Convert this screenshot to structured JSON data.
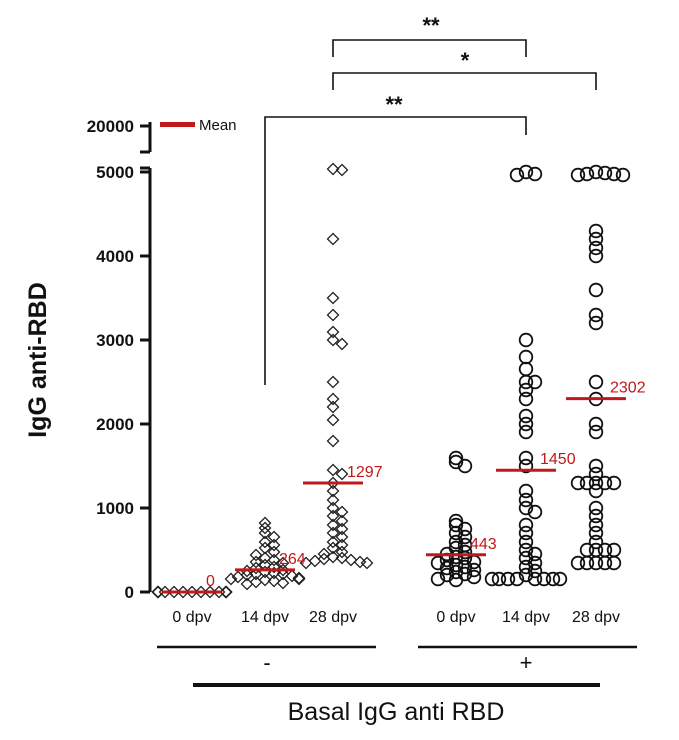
{
  "chart_data": {
    "type": "scatter",
    "ylabel": "IgG anti-RBD",
    "xlabel": "Basal IgG anti RBD",
    "y_ticks": [
      "0",
      "1000",
      "2000",
      "3000",
      "4000",
      "5000",
      "20000"
    ],
    "y_break": "5000 to 20000",
    "legend": {
      "label": "Mean",
      "position": "top-left",
      "color": "#c0181b"
    },
    "mean_color": "#c0181b",
    "groups": [
      {
        "label": "-",
        "categories": [
          "0 dpv",
          "14 dpv",
          "28 dpv"
        ]
      },
      {
        "label": "+",
        "categories": [
          "0 dpv",
          "14 dpv",
          "28 dpv"
        ]
      }
    ],
    "series": [
      {
        "category": "0 dpv",
        "group": "-",
        "marker": "diamond",
        "mean": 0,
        "mean_label": "0",
        "values": [
          0,
          0,
          0,
          0,
          0,
          0,
          0,
          0,
          0,
          0,
          0,
          0,
          0,
          0,
          0,
          0,
          0,
          0,
          0,
          0
        ]
      },
      {
        "category": "14 dpv",
        "group": "-",
        "marker": "diamond",
        "mean": 264,
        "mean_label": "264",
        "values": [
          820,
          760,
          700,
          650,
          600,
          560,
          520,
          480,
          440,
          400,
          380,
          360,
          340,
          320,
          300,
          280,
          260,
          250,
          240,
          230,
          220,
          210,
          200,
          190,
          180,
          170,
          160,
          150,
          140,
          130,
          120,
          110,
          100
        ]
      },
      {
        "category": "28 dpv",
        "group": "-",
        "marker": "diamond",
        "mean": 1297,
        "mean_label": "1297",
        "values": [
          5550,
          5500,
          4200,
          3500,
          3300,
          3100,
          3000,
          2950,
          2500,
          2300,
          2200,
          2050,
          1800,
          1450,
          1400,
          1300,
          1200,
          1100,
          1000,
          950,
          900,
          850,
          800,
          750,
          700,
          650,
          600,
          560,
          520,
          480,
          450,
          420,
          400,
          390,
          380,
          370,
          360,
          350,
          340
        ]
      },
      {
        "category": "0 dpv",
        "group": "+",
        "marker": "circle",
        "mean": 443,
        "mean_label": "443",
        "values": [
          1600,
          1550,
          1500,
          850,
          800,
          750,
          700,
          650,
          600,
          560,
          520,
          480,
          450,
          420,
          400,
          380,
          360,
          340,
          320,
          300,
          280,
          260,
          240,
          220,
          200,
          180,
          160,
          140
        ]
      },
      {
        "category": "14 dpv",
        "group": "+",
        "marker": "circle",
        "mean": 1450,
        "mean_label": "1450",
        "values": [
          5400,
          5350,
          5300,
          3000,
          2800,
          2650,
          2500,
          2500,
          2400,
          2300,
          2100,
          2000,
          1900,
          1600,
          1500,
          1200,
          1100,
          1000,
          950,
          800,
          700,
          600,
          500,
          450,
          400,
          350,
          300,
          250,
          200,
          150,
          150,
          150,
          150,
          150,
          150,
          150,
          150
        ]
      },
      {
        "category": "28 dpv",
        "group": "+",
        "marker": "circle",
        "mean": 2302,
        "mean_label": "2302",
        "values": [
          5400,
          5380,
          5350,
          5330,
          5300,
          5300,
          4300,
          4200,
          4100,
          4000,
          3600,
          3300,
          3200,
          2500,
          2300,
          2000,
          1900,
          1500,
          1400,
          1300,
          1300,
          1300,
          1300,
          1300,
          1200,
          1000,
          900,
          800,
          700,
          600,
          500,
          500,
          500,
          500,
          350,
          350,
          350,
          350,
          350
        ]
      }
    ],
    "significance": [
      {
        "from": "28 dpv (-)",
        "to": "14 dpv (+)",
        "label": "**"
      },
      {
        "from": "28 dpv (-)",
        "to": "28 dpv (+)",
        "label": "*"
      },
      {
        "from": "14 dpv (-)",
        "to": "14 dpv (+)",
        "label": "**"
      }
    ]
  }
}
